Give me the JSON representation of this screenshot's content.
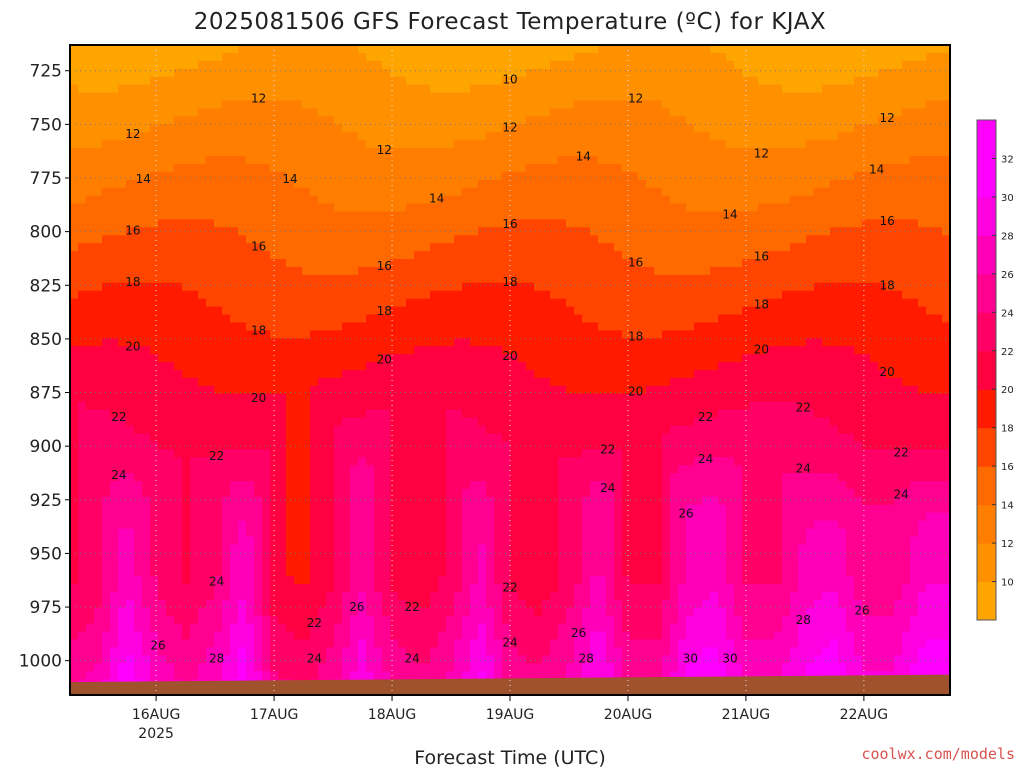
{
  "chart_data": {
    "type": "heatmap",
    "title": "2025081506 GFS Forecast Temperature (ºC) for KJAX",
    "xlabel": "Forecast Time (UTC)",
    "ylabel": "",
    "x_axis": {
      "ticks": [
        "16AUG",
        "17AUG",
        "18AUG",
        "19AUG",
        "20AUG",
        "21AUG",
        "22AUG"
      ],
      "first_tick_sublabel": "2025",
      "range_days": [
        -0.73,
        6.73
      ]
    },
    "y_axis": {
      "unit": "hPa",
      "ticks": [
        725,
        750,
        775,
        800,
        825,
        850,
        875,
        900,
        925,
        950,
        975,
        1000
      ],
      "range": [
        713,
        1016
      ]
    },
    "colorbar": {
      "ticks": [
        10,
        12,
        14,
        16,
        18,
        20,
        22,
        24,
        26,
        28,
        30,
        32
      ],
      "range": [
        8,
        34
      ],
      "colors": [
        "#ffa500",
        "#ff9100",
        "#ff7e00",
        "#ff6a00",
        "#ff4500",
        "#ff1a00",
        "#ff0040",
        "#ff0066",
        "#ff0090",
        "#ff00b8",
        "#ff00e0",
        "#ff00ff",
        "#ff00ff"
      ]
    },
    "contour_levels": [
      10,
      12,
      14,
      16,
      18,
      20,
      22,
      24,
      26,
      28,
      30
    ],
    "contour_labels": [
      "10",
      "12",
      "12",
      "12",
      "12",
      "12",
      "12",
      "12",
      "14",
      "14",
      "14",
      "14",
      "14",
      "14",
      "16",
      "16",
      "16",
      "16",
      "16",
      "16",
      "16",
      "18",
      "18",
      "18",
      "18",
      "18",
      "18",
      "18",
      "20",
      "20",
      "20",
      "20",
      "20",
      "20",
      "20",
      "22",
      "22",
      "22",
      "22",
      "22",
      "22",
      "22",
      "22",
      "22",
      "24",
      "24",
      "24",
      "24",
      "24",
      "24",
      "24",
      "24",
      "24",
      "26",
      "26",
      "26",
      "26",
      "26",
      "28",
      "28",
      "28",
      "30",
      "30"
    ],
    "series": [
      {
        "hours": [
          0,
          6,
          12,
          18,
          24,
          30,
          36,
          42,
          48,
          54,
          60,
          66,
          72,
          78,
          84,
          90,
          96,
          102,
          108,
          114,
          120,
          126,
          132,
          138,
          144,
          150,
          156,
          162,
          168,
          174
        ],
        "temperature_at_1000hPa": [
          26,
          27,
          32,
          28,
          26,
          28,
          32,
          25,
          24,
          26,
          30,
          26,
          25,
          27,
          31,
          26,
          25,
          27,
          31,
          26,
          26,
          31,
          32,
          28,
          28,
          31,
          32,
          29,
          29,
          32
        ]
      }
    ],
    "surface_fill_color": "#a0522d",
    "grid": true
  },
  "credit": "coolwx.com/models"
}
